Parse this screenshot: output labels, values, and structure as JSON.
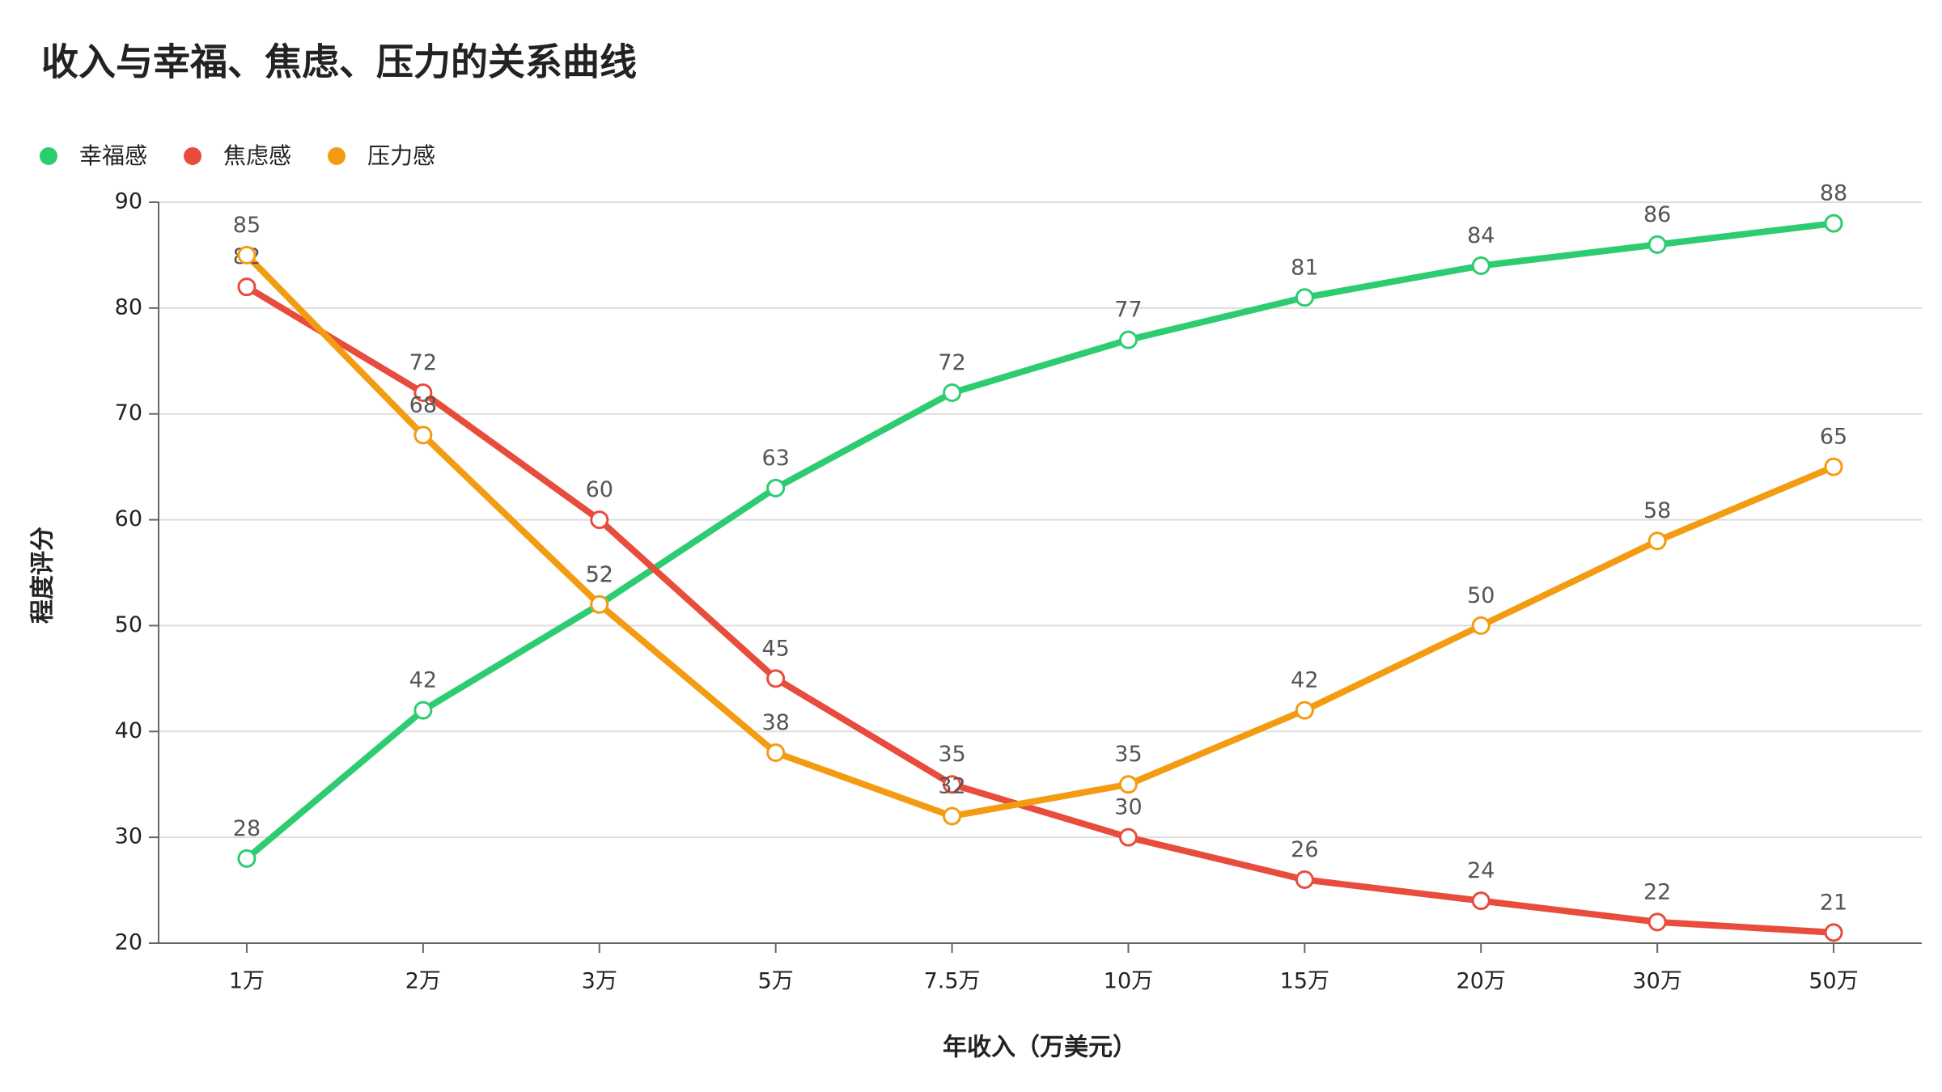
{
  "chart_data": {
    "type": "line",
    "title": "收入与幸福、焦虑、压力的关系曲线",
    "x_label": "年收入（万美元）",
    "y_label": "程度评分",
    "categories": [
      "1万",
      "2万",
      "3万",
      "5万",
      "7.5万",
      "10万",
      "15万",
      "20万",
      "30万",
      "50万"
    ],
    "series": [
      {
        "name": "幸福感",
        "color": "#2ecc71",
        "values": [
          28,
          42,
          52,
          63,
          72,
          77,
          81,
          84,
          86,
          88
        ]
      },
      {
        "name": "焦虑感",
        "color": "#e74c3c",
        "values": [
          82,
          72,
          60,
          45,
          35,
          30,
          26,
          24,
          22,
          21
        ]
      },
      {
        "name": "压力感",
        "color": "#f39c12",
        "values": [
          85,
          68,
          52,
          38,
          32,
          35,
          42,
          50,
          58,
          65
        ]
      }
    ],
    "ylim": [
      20,
      90
    ],
    "yticks": [
      20,
      30,
      40,
      50,
      60,
      70,
      80,
      90
    ],
    "grid": true,
    "legend": "top-left"
  }
}
